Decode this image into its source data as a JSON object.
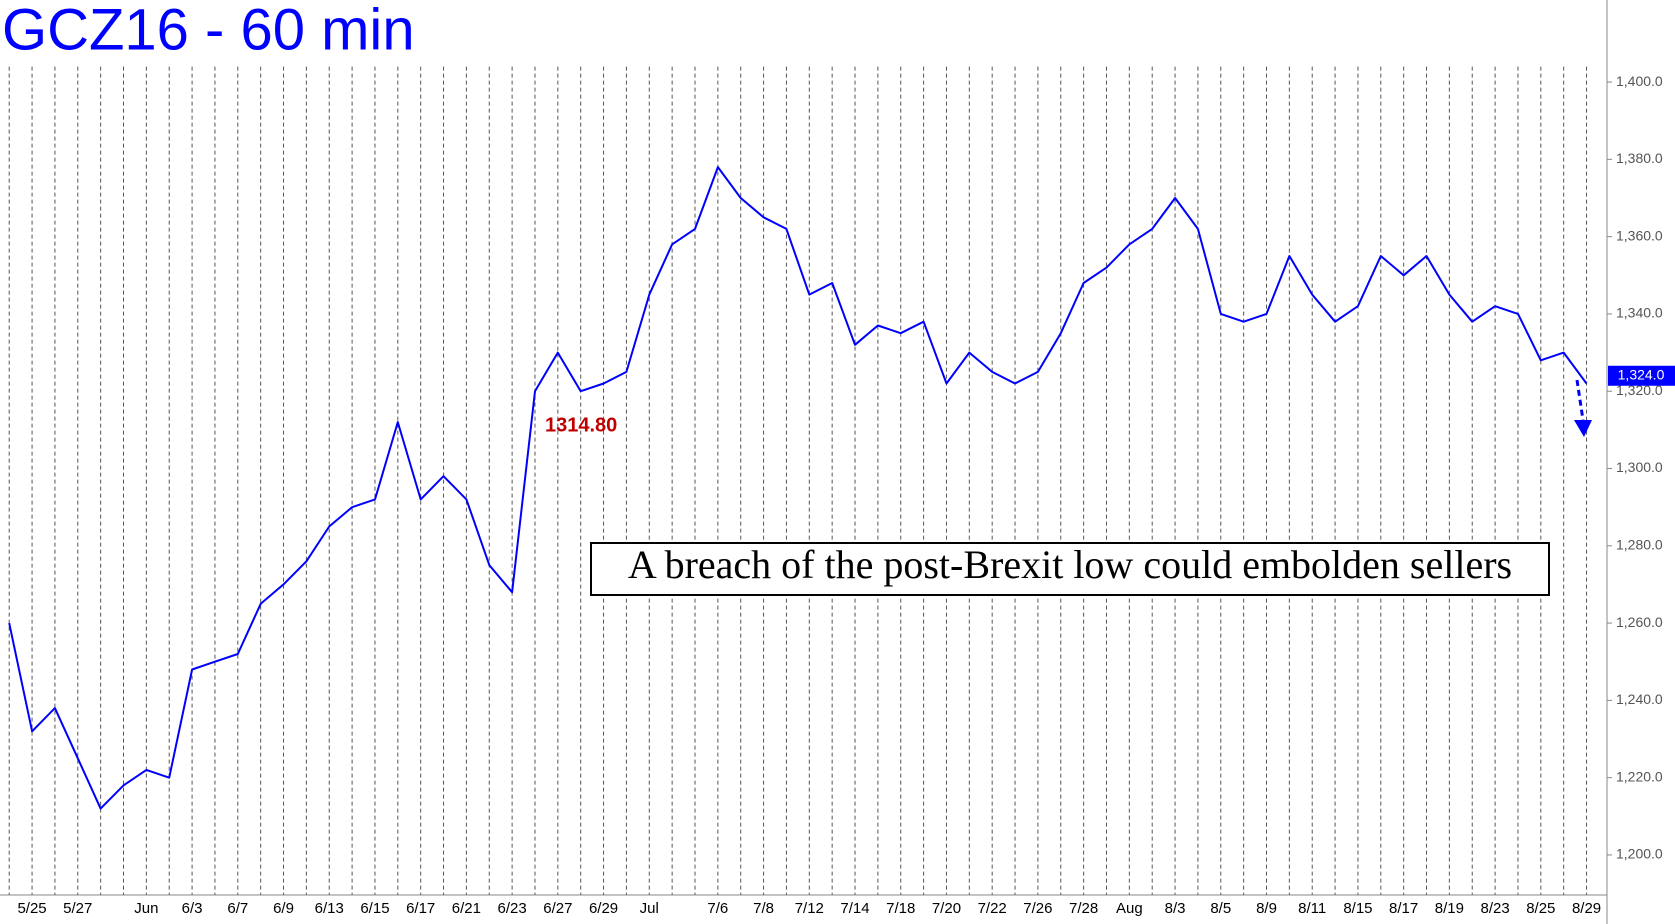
{
  "chart_data": {
    "type": "line",
    "title": "GCZ16 - 60 min",
    "annotation": "1314.80",
    "note": "A breach of the post-Brexit low could embolden sellers",
    "last_price": {
      "value": 1324,
      "label": "1,324.0"
    },
    "categories": [
      null,
      "5/25",
      null,
      "5/27",
      null,
      null,
      "Jun",
      null,
      "6/3",
      null,
      "6/7",
      null,
      "6/9",
      null,
      "6/13",
      null,
      "6/15",
      null,
      "6/17",
      null,
      "6/21",
      null,
      "6/23",
      null,
      "6/27",
      null,
      "6/29",
      null,
      "Jul",
      null,
      null,
      "7/6",
      null,
      "7/8",
      null,
      "7/12",
      null,
      "7/14",
      null,
      "7/18",
      null,
      "7/20",
      null,
      "7/22",
      null,
      "7/26",
      null,
      "7/28",
      null,
      "Aug",
      null,
      "8/3",
      null,
      "8/5",
      null,
      "8/9",
      null,
      "8/11",
      null,
      "8/15",
      null,
      "8/17",
      null,
      "8/19",
      null,
      "8/23",
      null,
      "8/25",
      null,
      "8/29"
    ],
    "series": [
      {
        "name": "GCZ16",
        "color": "#0000ff",
        "values": [
          1260,
          1232,
          1238,
          1225,
          1212,
          1218,
          1222,
          1220,
          1248,
          1250,
          1252,
          1265,
          1270,
          1276,
          1285,
          1290,
          1292,
          1312,
          1292,
          1298,
          1292,
          1275,
          1268,
          1320,
          1330,
          1320,
          1322,
          1325,
          1345,
          1358,
          1362,
          1378,
          1370,
          1365,
          1362,
          1345,
          1348,
          1332,
          1337,
          1335,
          1338,
          1322,
          1330,
          1325,
          1322,
          1325,
          1335,
          1348,
          1352,
          1358,
          1362,
          1370,
          1362,
          1340,
          1338,
          1340,
          1355,
          1345,
          1338,
          1342,
          1355,
          1350,
          1355,
          1345,
          1338,
          1342,
          1340,
          1328,
          1330,
          1322
        ]
      }
    ],
    "ylim": [
      1190,
      1404
    ],
    "yticks": [
      {
        "value": 1200,
        "label": "1,200.0"
      },
      {
        "value": 1220,
        "label": "1,220.0"
      },
      {
        "value": 1240,
        "label": "1,240.0"
      },
      {
        "value": 1260,
        "label": "1,260.0"
      },
      {
        "value": 1280,
        "label": "1,280.0"
      },
      {
        "value": 1300,
        "label": "1,300.0"
      },
      {
        "value": 1320,
        "label": "1,320.0"
      },
      {
        "value": 1340,
        "label": "1,340.0"
      },
      {
        "value": 1360,
        "label": "1,360.0"
      },
      {
        "value": 1380,
        "label": "1,380.0"
      },
      {
        "value": 1400,
        "label": "1,400.0"
      }
    ]
  }
}
